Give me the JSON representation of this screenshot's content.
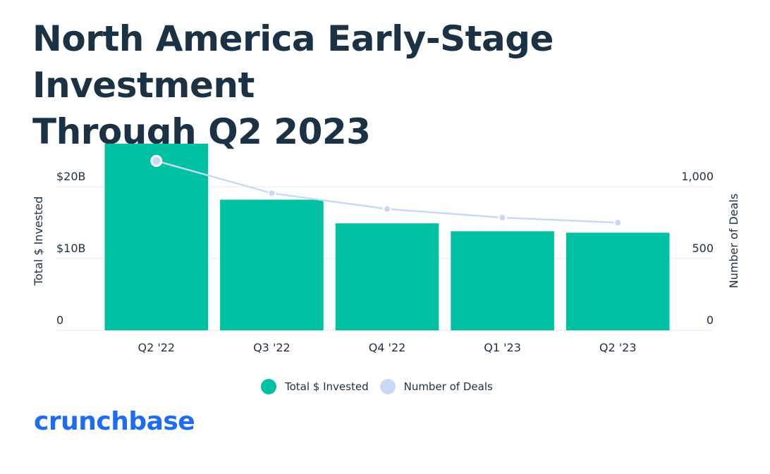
{
  "title_lines": [
    "North America Early-Stage Investment",
    "Through Q2 2023"
  ],
  "brand": {
    "name": "crunchbase",
    "color": "#1d6cf2"
  },
  "colors": {
    "bar": "#00c2a2",
    "line": "#c8d9f8",
    "point": "#c8d9f8",
    "grid": "#e6e9ee"
  },
  "chart_data": {
    "type": "bar",
    "categories": [
      "Q2 '22",
      "Q3 '22",
      "Q4 '22",
      "Q1 '23",
      "Q2 '23"
    ],
    "series": [
      {
        "name": "Total $ Invested",
        "type": "bar",
        "axis": "left",
        "values": [
          26.0,
          18.2,
          14.9,
          13.8,
          13.6
        ]
      },
      {
        "name": "Number of Deals",
        "type": "line",
        "axis": "right",
        "values": [
          1180,
          955,
          845,
          785,
          750
        ]
      }
    ],
    "ylabel": "Total $ Invested",
    "y2label": "Number of Deals",
    "ylim": [
      0,
      26
    ],
    "y2lim": [
      0,
      1300
    ],
    "yticks": [
      {
        "value": 0,
        "label": "0"
      },
      {
        "value": 10,
        "label": "$10B"
      },
      {
        "value": 20,
        "label": "$20B"
      }
    ],
    "y2ticks": [
      {
        "value": 0,
        "label": "0"
      },
      {
        "value": 500,
        "label": "500"
      },
      {
        "value": 1000,
        "label": "1,000"
      }
    ],
    "legend": [
      "Total $ Invested",
      "Number of Deals"
    ],
    "legend_position": "bottom-center"
  }
}
